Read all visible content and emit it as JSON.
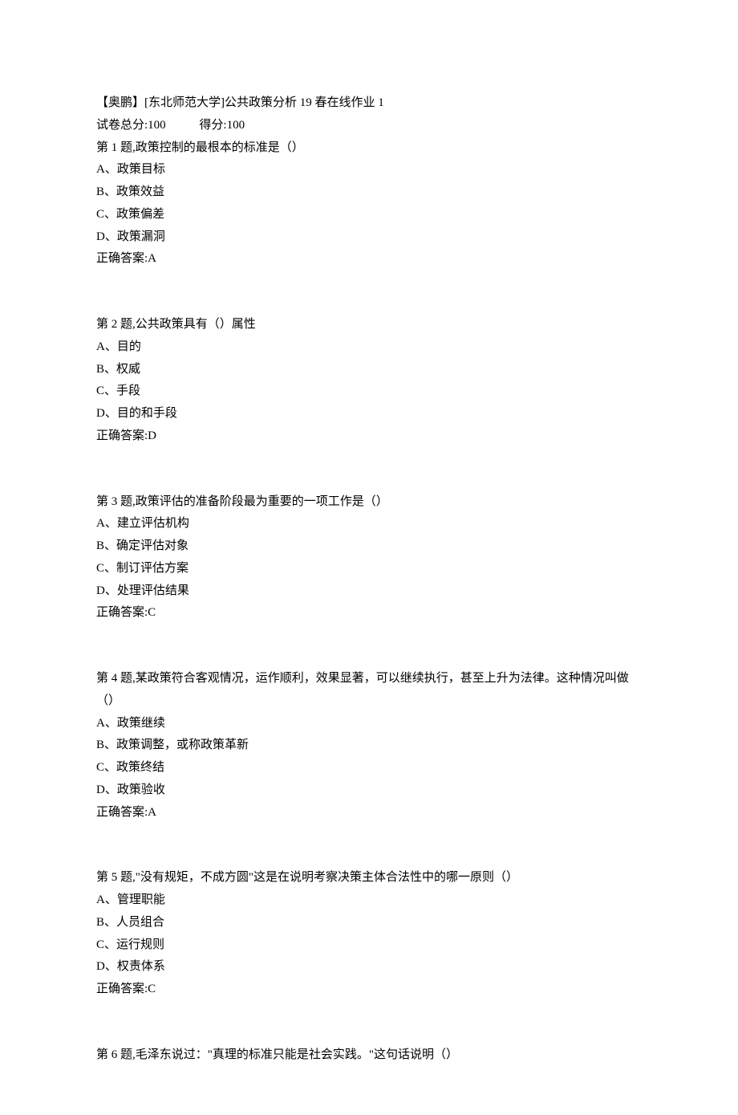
{
  "header": {
    "title": "【奥鹏】[东北师范大学]公共政策分析 19 春在线作业 1",
    "total_label": "试卷总分:",
    "total_value": "100",
    "score_label": "得分:",
    "score_value": "100"
  },
  "questions": [
    {
      "stem": "第 1 题,政策控制的最根本的标准是（）",
      "options": [
        "A、政策目标",
        "B、政策效益",
        "C、政策偏差",
        "D、政策漏洞"
      ],
      "answer_label": "正确答案:",
      "answer": "A"
    },
    {
      "stem": "第 2 题,公共政策具有（）属性",
      "options": [
        "A、目的",
        "B、权威",
        "C、手段",
        "D、目的和手段"
      ],
      "answer_label": "正确答案:",
      "answer": "D"
    },
    {
      "stem": "第 3 题,政策评估的准备阶段最为重要的一项工作是（）",
      "options": [
        "A、建立评估机构",
        "B、确定评估对象",
        "C、制订评估方案",
        "D、处理评估结果"
      ],
      "answer_label": "正确答案:",
      "answer": "C"
    },
    {
      "stem": "第 4 题,某政策符合客观情况，运作顺利，效果显著，可以继续执行，甚至上升为法律。这种情况叫做（）",
      "options": [
        "A、政策继续",
        "B、政策调整，或称政策革新",
        "C、政策终结",
        "D、政策验收"
      ],
      "answer_label": "正确答案:",
      "answer": "A"
    },
    {
      "stem": "第 5 题,\"没有规矩，不成方圆\"这是在说明考察决策主体合法性中的哪一原则（）",
      "options": [
        "A、管理职能",
        "B、人员组合",
        "C、运行规则",
        "D、权责体系"
      ],
      "answer_label": "正确答案:",
      "answer": "C"
    },
    {
      "stem": "第 6 题,毛泽东说过：\"真理的标准只能是社会实践。\"这句话说明（）",
      "options": [],
      "answer_label": "",
      "answer": ""
    }
  ]
}
